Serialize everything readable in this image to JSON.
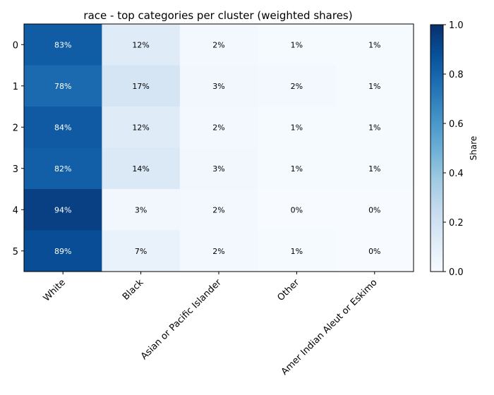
{
  "chart_data": {
    "type": "heatmap",
    "title": "race - top categories per cluster (weighted shares)",
    "x_categories": [
      "White",
      "Black",
      "Asian or Pacific Islander",
      "Other",
      "Amer Indian Aleut or Eskimo"
    ],
    "y_categories": [
      "0",
      "1",
      "2",
      "3",
      "4",
      "5"
    ],
    "values": [
      [
        0.83,
        0.12,
        0.02,
        0.01,
        0.01
      ],
      [
        0.78,
        0.17,
        0.03,
        0.02,
        0.01
      ],
      [
        0.84,
        0.12,
        0.02,
        0.01,
        0.01
      ],
      [
        0.82,
        0.14,
        0.03,
        0.01,
        0.01
      ],
      [
        0.94,
        0.03,
        0.02,
        0.0,
        0.0
      ],
      [
        0.89,
        0.07,
        0.02,
        0.01,
        0.0
      ]
    ],
    "cell_labels": [
      [
        "83%",
        "12%",
        "2%",
        "1%",
        "1%"
      ],
      [
        "78%",
        "17%",
        "3%",
        "2%",
        "1%"
      ],
      [
        "84%",
        "12%",
        "2%",
        "1%",
        "1%"
      ],
      [
        "82%",
        "14%",
        "3%",
        "1%",
        "1%"
      ],
      [
        "94%",
        "3%",
        "2%",
        "0%",
        "0%"
      ],
      [
        "89%",
        "7%",
        "2%",
        "1%",
        "0%"
      ]
    ],
    "colorbar": {
      "label": "Share",
      "range": [
        0,
        1
      ],
      "ticks": [
        "0.0",
        "0.2",
        "0.4",
        "0.6",
        "0.8",
        "1.0"
      ],
      "colormap": "Blues"
    },
    "grid": false,
    "xlabel": "",
    "ylabel": ""
  }
}
